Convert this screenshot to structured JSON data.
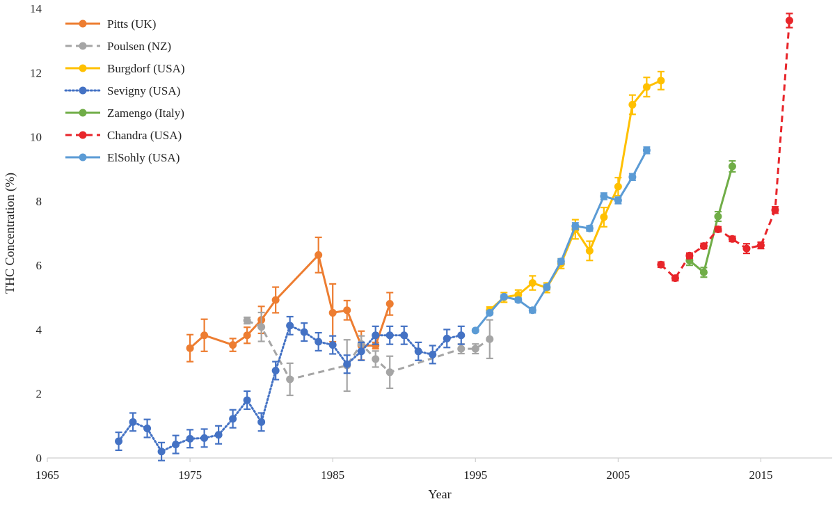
{
  "chart_data": {
    "type": "line",
    "title": "",
    "xlabel": "Year",
    "ylabel": "THC Concentration (%)",
    "xlim": [
      1965,
      2020
    ],
    "ylim": [
      0,
      14
    ],
    "x_ticks": [
      "1965",
      "1975",
      "1985",
      "1995",
      "2005",
      "2015"
    ],
    "y_ticks": [
      "0",
      "2",
      "4",
      "6",
      "8",
      "10",
      "12",
      "14"
    ],
    "grid": false,
    "legend_position": "top-left",
    "series": [
      {
        "name": "Pitts (UK)",
        "color": "#ED7D31",
        "dash": "solid",
        "x": [
          1975,
          1976,
          1978,
          1979,
          1980,
          1981,
          1984,
          1985,
          1986,
          1987,
          1988,
          1989
        ],
        "y": [
          3.42,
          3.82,
          3.52,
          3.82,
          4.3,
          4.92,
          6.32,
          4.52,
          4.6,
          3.5,
          3.5,
          4.8
        ],
        "err": [
          0.42,
          0.5,
          0.2,
          0.25,
          0.42,
          0.4,
          0.55,
          0.9,
          0.3,
          0.45,
          0.1,
          0.35
        ]
      },
      {
        "name": "Poulsen (NZ)",
        "color": "#A5A5A5",
        "dash": "dashed",
        "x": [
          1979,
          1980,
          1982,
          1986,
          1987,
          1988,
          1989,
          1994,
          1995,
          1996
        ],
        "y": [
          4.28,
          4.08,
          2.45,
          2.88,
          3.55,
          3.08,
          2.67,
          3.4,
          3.4,
          3.7
        ],
        "err": [
          0.1,
          0.45,
          0.5,
          0.8,
          0.25,
          0.25,
          0.5,
          0.15,
          0.15,
          0.6
        ]
      },
      {
        "name": "Burgdorf (USA)",
        "color": "#FFC000",
        "dash": "solid",
        "x": [
          1996,
          1997,
          1998,
          1999,
          2000,
          2001,
          2002,
          2003,
          2004,
          2005,
          2006,
          2007,
          2008
        ],
        "y": [
          4.6,
          5.0,
          5.08,
          5.45,
          5.3,
          6.05,
          7.12,
          6.45,
          7.5,
          8.45,
          11.0,
          11.55,
          11.75
        ],
        "err": [
          0.1,
          0.15,
          0.15,
          0.22,
          0.15,
          0.15,
          0.3,
          0.3,
          0.3,
          0.28,
          0.3,
          0.3,
          0.28
        ]
      },
      {
        "name": "Sevigny (USA)",
        "color": "#4472C4",
        "dash": "dotted",
        "x": [
          1970,
          1971,
          1972,
          1973,
          1974,
          1975,
          1976,
          1977,
          1978,
          1979,
          1980,
          1981,
          1982,
          1983,
          1984,
          1985,
          1986,
          1987,
          1988,
          1989,
          1990,
          1991,
          1992,
          1993,
          1994
        ],
        "y": [
          0.52,
          1.12,
          0.92,
          0.2,
          0.42,
          0.6,
          0.62,
          0.72,
          1.22,
          1.8,
          1.12,
          2.72,
          4.12,
          3.92,
          3.62,
          3.52,
          2.92,
          3.32,
          3.82,
          3.82,
          3.82,
          3.32,
          3.22,
          3.72,
          3.82
        ],
        "err": [
          0.28,
          0.28,
          0.28,
          0.28,
          0.28,
          0.28,
          0.28,
          0.28,
          0.28,
          0.28,
          0.28,
          0.28,
          0.28,
          0.28,
          0.28,
          0.28,
          0.28,
          0.28,
          0.28,
          0.28,
          0.28,
          0.28,
          0.28,
          0.28,
          0.28
        ]
      },
      {
        "name": "Zamengo (Italy)",
        "color": "#70AD47",
        "dash": "solid",
        "x": [
          2010,
          2011,
          2012,
          2013
        ],
        "y": [
          6.15,
          5.78,
          7.52,
          9.08
        ],
        "err": [
          0.15,
          0.15,
          0.15,
          0.17
        ]
      },
      {
        "name": "Chandra (USA)",
        "color": "#E8252A",
        "dash": "dashed",
        "x": [
          2008,
          2009,
          2010,
          2011,
          2012,
          2013,
          2014,
          2015,
          2016,
          2017
        ],
        "y": [
          6.02,
          5.6,
          6.3,
          6.6,
          7.12,
          6.82,
          6.52,
          6.62,
          7.72,
          13.62
        ],
        "err": [
          0.08,
          0.08,
          0.08,
          0.08,
          0.08,
          0.08,
          0.15,
          0.1,
          0.1,
          0.22
        ]
      },
      {
        "name": "ElSohly (USA)",
        "color": "#5B9BD5",
        "dash": "solid",
        "x": [
          1995,
          1996,
          1997,
          1998,
          1999,
          2000,
          2001,
          2002,
          2003,
          2004,
          2005,
          2006,
          2007
        ],
        "y": [
          3.97,
          4.52,
          5.02,
          4.92,
          4.6,
          5.32,
          6.12,
          7.22,
          7.15,
          8.15,
          8.02,
          8.75,
          9.58
        ],
        "err": [
          0.04,
          0.06,
          0.06,
          0.06,
          0.08,
          0.08,
          0.08,
          0.1,
          0.08,
          0.1,
          0.1,
          0.1,
          0.1
        ]
      }
    ]
  }
}
